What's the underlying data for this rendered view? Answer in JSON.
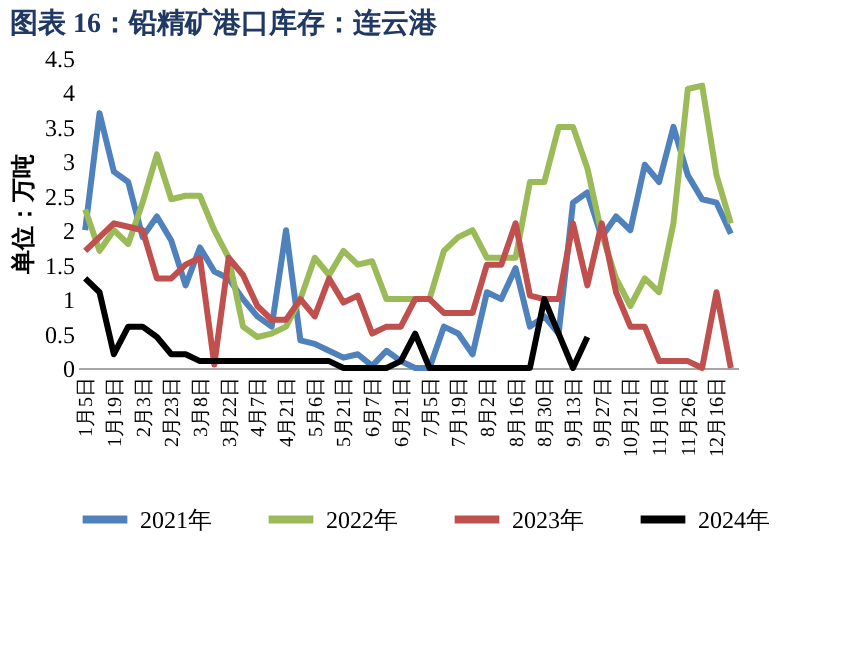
{
  "chart_data": {
    "type": "line",
    "title": "图表 16：铅精矿港口库存：连云港",
    "ylabel": "单位：万吨",
    "categories": [
      "1月5日",
      null,
      "1月19日",
      null,
      "2月3日",
      null,
      "2月23日",
      null,
      "3月8日",
      null,
      "3月22日",
      null,
      "4月7日",
      null,
      "4月21日",
      null,
      "5月6日",
      null,
      "5月21日",
      null,
      "6月7日",
      null,
      "6月21日",
      null,
      "7月5日",
      null,
      "7月19日",
      null,
      "8月2日",
      null,
      "8月16日",
      null,
      "8月30日",
      null,
      "9月13日",
      null,
      "9月27日",
      null,
      "10月21日",
      null,
      "11月10日",
      null,
      "11月26日",
      null,
      "12月16日",
      null
    ],
    "series": [
      {
        "name": "2021年",
        "color": "#4f81bd",
        "values": [
          2.0,
          3.7,
          2.85,
          2.7,
          1.9,
          2.2,
          1.85,
          1.2,
          1.75,
          1.4,
          1.3,
          1.0,
          0.75,
          0.6,
          2.0,
          0.4,
          0.35,
          0.25,
          0.15,
          0.2,
          0.03,
          0.25,
          0.1,
          0,
          0,
          0.6,
          0.5,
          0.2,
          1.1,
          1.0,
          1.45,
          0.6,
          0.75,
          0.5,
          2.4,
          2.55,
          1.9,
          2.2,
          2.0,
          2.95,
          2.7,
          3.5,
          2.8,
          2.45,
          2.4,
          1.95
        ]
      },
      {
        "name": "2022年",
        "color": "#9bbb59",
        "values": [
          2.3,
          1.7,
          2.0,
          1.8,
          2.4,
          3.1,
          2.45,
          2.5,
          2.5,
          2.0,
          1.6,
          0.6,
          0.45,
          0.5,
          0.6,
          1.0,
          1.6,
          1.35,
          1.7,
          1.5,
          1.55,
          1.0,
          1.0,
          1.0,
          1.0,
          1.7,
          1.9,
          2.0,
          1.6,
          1.6,
          1.6,
          2.7,
          2.7,
          3.5,
          3.5,
          2.9,
          1.95,
          1.3,
          0.9,
          1.3,
          1.1,
          2.1,
          4.05,
          4.1,
          2.8,
          2.1
        ]
      },
      {
        "name": "2023年",
        "color": "#c0504d",
        "values": [
          1.7,
          1.9,
          2.1,
          2.05,
          2.0,
          1.3,
          1.3,
          1.5,
          1.6,
          0.05,
          1.6,
          1.35,
          0.9,
          0.7,
          0.7,
          1.0,
          0.75,
          1.3,
          0.95,
          1.05,
          0.5,
          0.6,
          0.6,
          1.0,
          1.0,
          0.8,
          0.8,
          0.8,
          1.5,
          1.5,
          2.1,
          1.05,
          1.0,
          1.0,
          2.1,
          1.2,
          2.1,
          1.1,
          0.6,
          0.6,
          0.1,
          0.1,
          0.1,
          0,
          1.1,
          0
        ]
      },
      {
        "name": "2024年",
        "color": "#000000",
        "values": [
          1.3,
          1.1,
          0.2,
          0.6,
          0.6,
          0.45,
          0.2,
          0.2,
          0.1,
          0.1,
          0.1,
          0.1,
          0.1,
          0.1,
          0.1,
          0.1,
          0.1,
          0.1,
          0,
          0,
          0,
          0,
          0.1,
          0.5,
          0,
          0,
          0,
          0,
          0,
          0,
          0,
          0,
          1.0,
          0.5,
          0,
          0.45,
          null,
          null,
          null,
          null,
          null,
          null,
          null,
          null,
          null,
          null
        ]
      }
    ],
    "ylim": [
      0,
      4.5
    ],
    "yticks": [
      0,
      0.5,
      1,
      1.5,
      2,
      2.5,
      3,
      3.5,
      4,
      4.5
    ],
    "grid": false,
    "legend": "bottom",
    "line_style": "solid",
    "marker": "none"
  }
}
